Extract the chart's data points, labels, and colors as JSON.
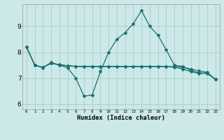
{
  "xlabel": "Humidex (Indice chaleur)",
  "bg_color": "#cce8e8",
  "grid_color": "#aacccc",
  "line_color": "#1a7070",
  "x": [
    0,
    1,
    2,
    3,
    4,
    5,
    6,
    7,
    8,
    9,
    10,
    11,
    12,
    13,
    14,
    15,
    16,
    17,
    18,
    19,
    20,
    21,
    22,
    23
  ],
  "line1": [
    8.2,
    7.5,
    7.4,
    7.6,
    7.5,
    7.4,
    7.0,
    6.3,
    6.35,
    7.25,
    8.0,
    8.5,
    8.75,
    9.1,
    9.6,
    9.0,
    8.65,
    8.1,
    7.5,
    7.45,
    7.3,
    7.2,
    7.2,
    6.95
  ],
  "line2": [
    8.2,
    7.5,
    7.42,
    7.58,
    7.52,
    7.48,
    7.46,
    7.45,
    7.45,
    7.45,
    7.45,
    7.45,
    7.45,
    7.45,
    7.45,
    7.45,
    7.45,
    7.45,
    7.44,
    7.42,
    7.35,
    7.28,
    7.22,
    6.95
  ],
  "line3": [
    8.2,
    7.5,
    7.41,
    7.57,
    7.51,
    7.47,
    7.45,
    7.44,
    7.44,
    7.44,
    7.44,
    7.44,
    7.44,
    7.44,
    7.44,
    7.44,
    7.44,
    7.44,
    7.42,
    7.35,
    7.25,
    7.18,
    7.18,
    6.95
  ],
  "ylim": [
    5.8,
    9.85
  ],
  "yticks": [
    6,
    7,
    8,
    9
  ],
  "xlim": [
    -0.5,
    23.5
  ]
}
